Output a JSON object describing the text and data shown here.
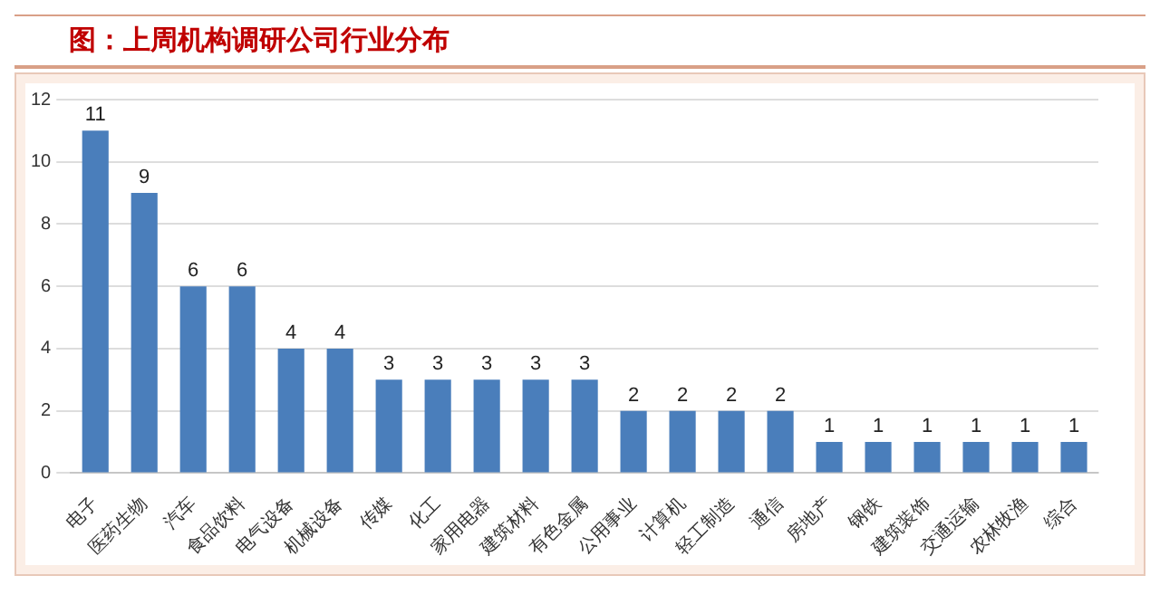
{
  "chart_data": {
    "type": "bar",
    "title": "图：上周机构调研公司行业分布",
    "categories": [
      "电子",
      "医药生物",
      "汽车",
      "食品饮料",
      "电气设备",
      "机械设备",
      "传媒",
      "化工",
      "家用电器",
      "建筑材料",
      "有色金属",
      "公用事业",
      "计算机",
      "轻工制造",
      "通信",
      "房地产",
      "钢铁",
      "建筑装饰",
      "交通运输",
      "农林牧渔",
      "综合"
    ],
    "values": [
      11,
      9,
      6,
      6,
      4,
      4,
      3,
      3,
      3,
      3,
      3,
      2,
      2,
      2,
      2,
      1,
      1,
      1,
      1,
      1,
      1
    ],
    "color": "#4a7ebb",
    "ylim": [
      0,
      12
    ],
    "yticks": [
      0,
      2,
      4,
      6,
      8,
      10,
      12
    ],
    "grid": "y",
    "data_labels": true,
    "legend": false
  }
}
